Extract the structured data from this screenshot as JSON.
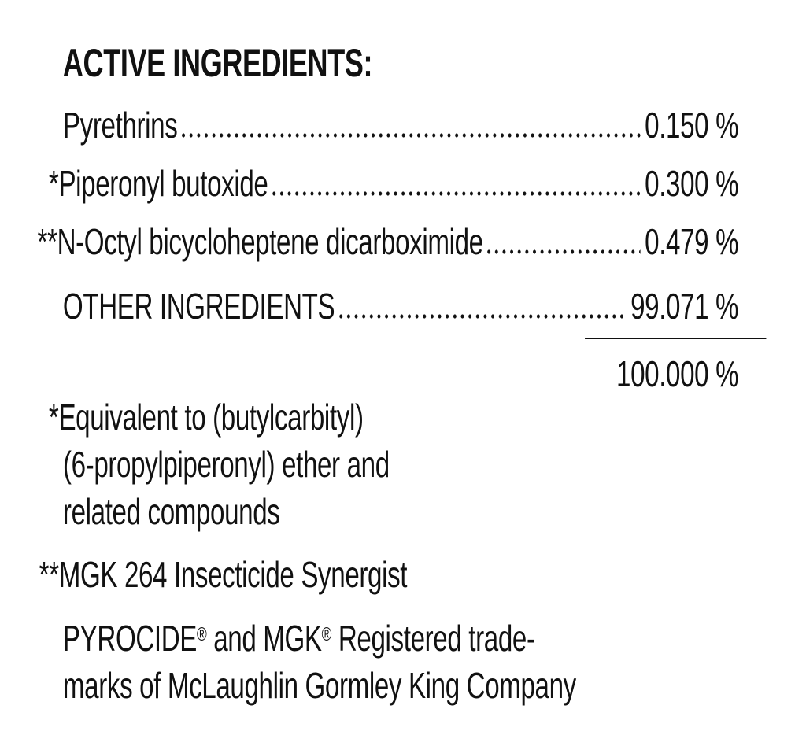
{
  "heading": "ACTIVE INGREDIENTS:",
  "ingredients": [
    {
      "name": "Pyrethrins",
      "percent": "0.150 %"
    },
    {
      "name": "*Piperonyl butoxide",
      "percent": "0.300 %"
    },
    {
      "name": "**N-Octyl bicycloheptene dicarboximide",
      "percent": "0.479 %"
    },
    {
      "name": "OTHER INGREDIENTS",
      "percent": "99.071 %"
    }
  ],
  "total": "100.000 %",
  "footnotes": {
    "note1_line1": "*Equivalent to (butylcarbityl)",
    "note1_line2": "(6-propylpiperonyl) ether and",
    "note1_line3": "related compounds",
    "note2": "**MGK 264 Insecticide Synergist"
  },
  "trademark": {
    "brand1": "PYROCIDE",
    "reg": "®",
    "and": " and MGK",
    "rest_line1": " Registered trade-",
    "line2": "marks of McLaughlin Gormley King Company"
  }
}
